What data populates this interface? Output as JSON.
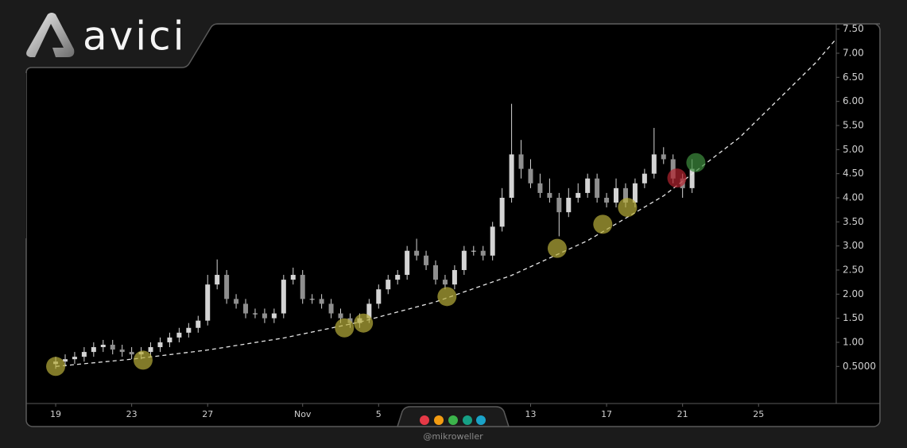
{
  "chart_data": {
    "type": "candlestick",
    "logo_text": "avici",
    "credit": "@mikroweller",
    "color": "#d4d4d4",
    "x": [
      0,
      0.5,
      1,
      1.5,
      2,
      2.5,
      3,
      3.5,
      4,
      4.5,
      5,
      5.5,
      6,
      6.5,
      7,
      7.5,
      8,
      8.5,
      9,
      9.5,
      10,
      10.5,
      11,
      11.5,
      12,
      12.5,
      13,
      13.5,
      14,
      14.5,
      15,
      15.5,
      16,
      16.5,
      17,
      17.5,
      18,
      18.5,
      19,
      19.5,
      20,
      20.5,
      21,
      21.5,
      22,
      22.5,
      23,
      23.5,
      24,
      24.5,
      25,
      25.5,
      26,
      26.5,
      27,
      27.5,
      28,
      28.5,
      29,
      29.5,
      30,
      30.5,
      31,
      31.5,
      32,
      32.5,
      33,
      33.5
    ],
    "open": [
      0.55,
      0.6,
      0.65,
      0.7,
      0.8,
      0.9,
      0.95,
      0.85,
      0.8,
      0.75,
      0.8,
      0.9,
      1.0,
      1.1,
      1.2,
      1.3,
      1.45,
      2.2,
      2.4,
      1.9,
      1.8,
      1.6,
      1.6,
      1.5,
      1.6,
      2.3,
      2.4,
      1.9,
      1.9,
      1.8,
      1.6,
      1.5,
      1.4,
      1.5,
      1.8,
      2.1,
      2.3,
      2.4,
      2.9,
      2.8,
      2.6,
      2.3,
      2.2,
      2.5,
      2.9,
      2.9,
      2.8,
      3.4,
      4.0,
      4.9,
      4.6,
      4.3,
      4.1,
      4.0,
      3.7,
      4.0,
      4.1,
      4.4,
      4.0,
      3.9,
      4.2,
      3.9,
      4.3,
      4.5,
      4.9,
      4.8,
      4.4,
      4.2
    ],
    "high": [
      0.7,
      0.75,
      0.8,
      0.9,
      1.0,
      1.05,
      1.05,
      0.95,
      0.9,
      0.9,
      1.0,
      1.1,
      1.2,
      1.3,
      1.4,
      1.55,
      2.4,
      2.72,
      2.5,
      2.0,
      1.9,
      1.7,
      1.7,
      1.7,
      2.4,
      2.55,
      2.5,
      2.0,
      2.0,
      1.9,
      1.7,
      1.6,
      1.6,
      1.9,
      2.2,
      2.4,
      2.5,
      3.0,
      3.15,
      2.9,
      2.7,
      2.4,
      2.6,
      3.0,
      3.0,
      3.0,
      3.5,
      4.2,
      5.95,
      5.2,
      4.8,
      4.5,
      4.4,
      4.1,
      4.2,
      4.3,
      4.5,
      4.5,
      4.1,
      4.4,
      4.3,
      4.4,
      4.6,
      5.45,
      5.05,
      4.9,
      4.5,
      4.8
    ],
    "low": [
      0.45,
      0.5,
      0.55,
      0.6,
      0.7,
      0.8,
      0.75,
      0.7,
      0.65,
      0.65,
      0.7,
      0.8,
      0.9,
      1.0,
      1.1,
      1.2,
      1.35,
      2.1,
      1.8,
      1.7,
      1.5,
      1.5,
      1.4,
      1.4,
      1.5,
      2.2,
      1.8,
      1.8,
      1.7,
      1.5,
      1.4,
      1.3,
      1.3,
      1.4,
      1.7,
      2.0,
      2.2,
      2.3,
      2.7,
      2.5,
      2.2,
      2.1,
      2.1,
      2.4,
      2.8,
      2.7,
      2.7,
      3.3,
      3.9,
      4.4,
      4.2,
      4.0,
      3.9,
      3.2,
      3.6,
      3.9,
      4.0,
      3.9,
      3.8,
      3.8,
      3.8,
      3.8,
      4.2,
      4.4,
      4.7,
      4.3,
      4.0,
      4.1
    ],
    "close": [
      0.6,
      0.65,
      0.7,
      0.8,
      0.9,
      0.95,
      0.85,
      0.8,
      0.75,
      0.8,
      0.9,
      1.0,
      1.1,
      1.2,
      1.3,
      1.45,
      2.2,
      2.4,
      1.9,
      1.8,
      1.6,
      1.6,
      1.5,
      1.6,
      2.3,
      2.4,
      1.9,
      1.9,
      1.8,
      1.6,
      1.5,
      1.4,
      1.5,
      1.8,
      2.1,
      2.3,
      2.4,
      2.9,
      2.8,
      2.6,
      2.3,
      2.2,
      2.5,
      2.9,
      2.9,
      2.8,
      3.4,
      4.0,
      4.9,
      4.6,
      4.3,
      4.1,
      4.0,
      3.7,
      4.0,
      4.1,
      4.4,
      4.0,
      3.9,
      4.2,
      3.9,
      4.3,
      4.5,
      4.9,
      4.8,
      4.4,
      4.2,
      4.6
    ],
    "trend": {
      "color": "#e6e6e6",
      "x": [
        0,
        4,
        8,
        12,
        16,
        20,
        24,
        28,
        32,
        36,
        40,
        41.09
      ],
      "values": [
        0.5,
        0.65,
        0.84,
        1.09,
        1.42,
        1.84,
        2.39,
        3.11,
        4.04,
        5.25,
        6.8,
        7.3
      ]
    },
    "markers": [
      {
        "color": "#b8ae3a",
        "x": [
          0,
          4.6,
          15.2,
          16.2,
          20.6,
          26.4,
          28.8,
          30.1
        ],
        "values": [
          0.5,
          0.63,
          1.3,
          1.4,
          1.95,
          2.95,
          3.45,
          3.8
        ]
      },
      {
        "color": "#b3232f",
        "x": [
          32.7
        ],
        "values": [
          4.41
        ]
      },
      {
        "color": "#3f8f3f",
        "x": [
          33.7
        ],
        "values": [
          4.73
        ]
      }
    ],
    "xlim": [
      -1.55,
      41.09
    ],
    "xticks": [
      {
        "value": 0,
        "label": "19"
      },
      {
        "value": 4,
        "label": "23"
      },
      {
        "value": 8,
        "label": "27"
      },
      {
        "value": 13,
        "label": "Nov"
      },
      {
        "value": 17,
        "label": "5"
      },
      {
        "value": 25,
        "label": "13"
      },
      {
        "value": 29,
        "label": "17"
      },
      {
        "value": 33,
        "label": "21"
      },
      {
        "value": 37,
        "label": "25"
      }
    ],
    "ylim": [
      -0.27,
      7.61
    ],
    "yticks": [
      {
        "value": 7.5,
        "label": "7.50"
      },
      {
        "value": 7,
        "label": "7.00"
      },
      {
        "value": 6.5,
        "label": "6.50"
      },
      {
        "value": 6,
        "label": "6.00"
      },
      {
        "value": 5.5,
        "label": "5.50"
      },
      {
        "value": 5,
        "label": "5.00"
      },
      {
        "value": 4.5,
        "label": "4.50"
      },
      {
        "value": 4,
        "label": "4.00"
      },
      {
        "value": 3.5,
        "label": "3.50"
      },
      {
        "value": 3,
        "label": "3.00"
      },
      {
        "value": 2.5,
        "label": "2.50"
      },
      {
        "value": 2,
        "label": "2.00"
      },
      {
        "value": 1.5,
        "label": "1.50"
      },
      {
        "value": 1,
        "label": "1.00"
      },
      {
        "value": 0.5,
        "label": "0.5000"
      }
    ]
  }
}
